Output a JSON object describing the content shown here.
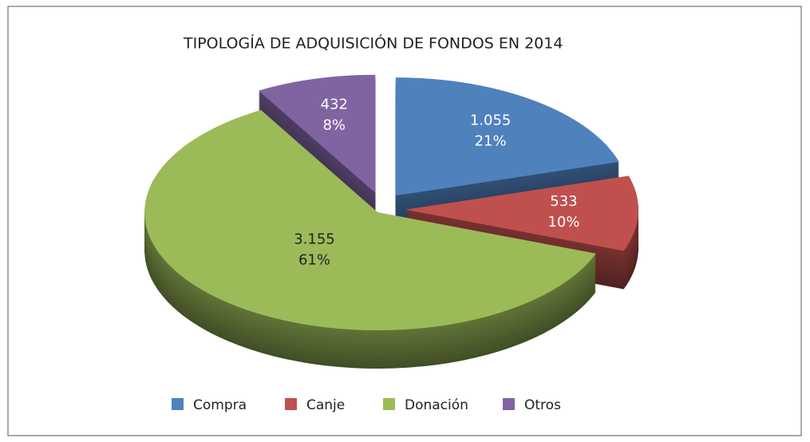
{
  "chart_data": {
    "type": "pie",
    "title": "TIPOLOGÍA DE ADQUISICIÓN DE FONDOS EN 2014",
    "categories": [
      "Compra",
      "Canje",
      "Donación",
      "Otros"
    ],
    "values": [
      1055,
      533,
      3155,
      432
    ],
    "value_labels": [
      "1.055",
      "533",
      "3.155",
      "432"
    ],
    "percents": [
      21,
      10,
      61,
      8
    ],
    "percent_labels": [
      "21%",
      "10%",
      "61%",
      "8%"
    ],
    "colors": [
      "#4f81bd",
      "#c0504d",
      "#9bbb59",
      "#8064a2"
    ],
    "label_colors": [
      "#ffffff",
      "#ffffff",
      "#222222",
      "#ffffff"
    ],
    "legend": "bottom"
  }
}
